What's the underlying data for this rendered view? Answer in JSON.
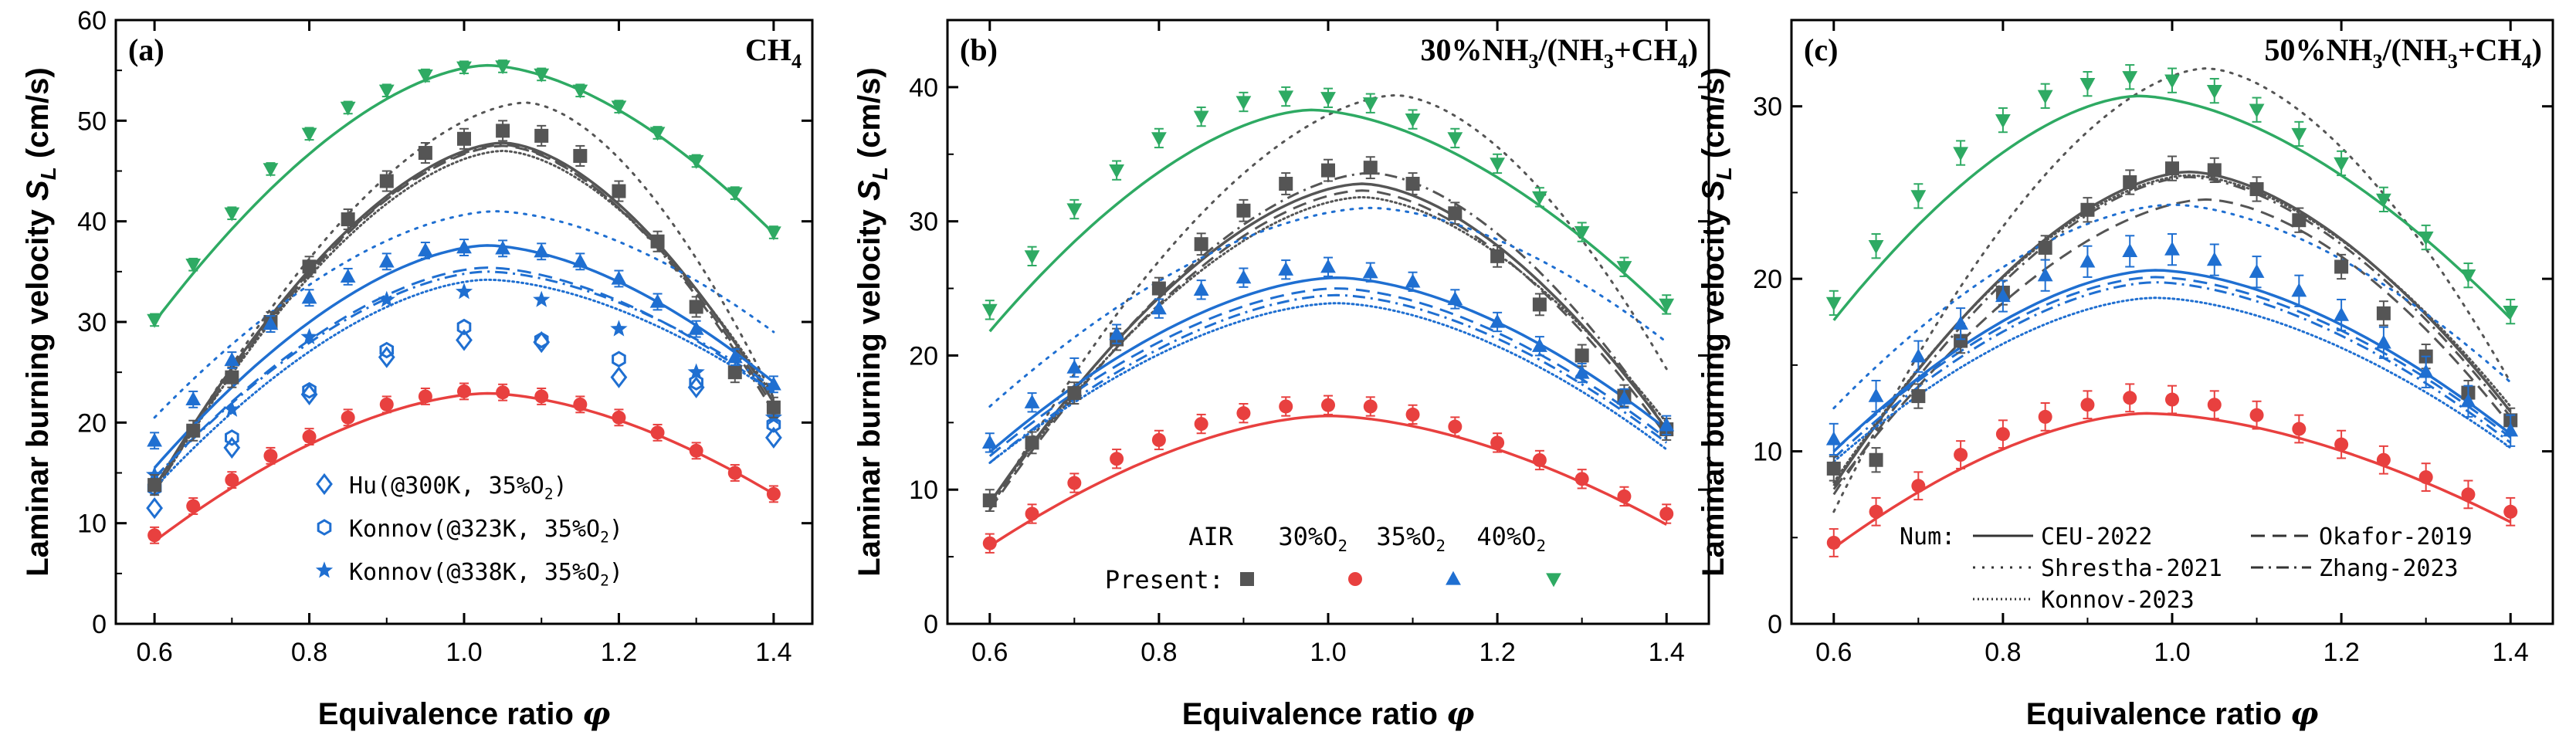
{
  "chart_data": [
    {
      "type": "line",
      "panel_label": "(a)",
      "fuel_label": "CH",
      "fuel_sub": "4",
      "fuel_rest": "",
      "xlabel": "Equivalence ratio",
      "xsym": "φ",
      "ylabel": "Laminar burning velocity",
      "ysym": "S",
      "ysub": "L",
      "yunit": "(cm/s)",
      "xlim": [
        0.55,
        1.45
      ],
      "ylim": [
        0,
        60
      ],
      "xticks": [
        0.6,
        0.8,
        1.0,
        1.2,
        1.4
      ],
      "xtick_labels": [
        "0.6",
        "0.8",
        "1.0",
        "1.2",
        "1.4"
      ],
      "yticks": [
        0,
        10,
        20,
        30,
        40,
        50,
        60
      ],
      "ytick_labels": [
        "0",
        "10",
        "20",
        "30",
        "40",
        "50",
        "60"
      ],
      "x": [
        0.6,
        0.65,
        0.7,
        0.75,
        0.8,
        0.85,
        0.9,
        0.95,
        1.0,
        1.05,
        1.1,
        1.15,
        1.2,
        1.25,
        1.3,
        1.35,
        1.4
      ],
      "series": [
        {
          "name": "AIR",
          "color": "#555555",
          "marker": "square",
          "err": 1.0,
          "values": [
            13.8,
            19.2,
            24.5,
            30.0,
            35.5,
            40.2,
            44.0,
            46.8,
            48.2,
            49.0,
            48.5,
            46.5,
            43.0,
            38.0,
            31.5,
            25.0,
            21.5
          ]
        },
        {
          "name": "30%O2",
          "color": "#e8403f",
          "marker": "circle",
          "err": 0.8,
          "values": [
            8.8,
            11.7,
            14.3,
            16.7,
            18.6,
            20.5,
            21.8,
            22.6,
            23.1,
            23.0,
            22.6,
            21.8,
            20.5,
            19.0,
            17.2,
            15.0,
            12.9
          ]
        },
        {
          "name": "35%O2",
          "color": "#1f6fd1",
          "marker": "triangle",
          "err": 0.8,
          "values": [
            18.2,
            22.3,
            26.2,
            29.8,
            32.4,
            34.5,
            36.0,
            37.1,
            37.4,
            37.3,
            37.0,
            36.0,
            34.3,
            32.0,
            29.3,
            26.5,
            23.8
          ]
        },
        {
          "name": "40%O2",
          "color": "#2eaa63",
          "marker": "triangle-down",
          "err": 0.6,
          "values": [
            30.2,
            35.7,
            40.8,
            45.2,
            48.7,
            51.3,
            53.0,
            54.5,
            55.3,
            55.4,
            54.6,
            53.0,
            51.4,
            48.8,
            46.0,
            42.8,
            38.9
          ]
        }
      ],
      "model_curves": [
        {
          "name": "CEU-2022 AIR",
          "color": "#555555",
          "style": "solid",
          "peak": 47.8,
          "phi0": 1.05,
          "end_lo": 13.5,
          "end_hi": 22.0
        },
        {
          "name": "Shrestha-2021 AIR",
          "color": "#555555",
          "style": "dot",
          "peak": 51.8,
          "phi0": 1.08,
          "end_lo": 13.0,
          "end_hi": 22.5
        },
        {
          "name": "Okafor-2019 AIR",
          "color": "#555555",
          "style": "dash",
          "peak": 47.5,
          "phi0": 1.05,
          "end_lo": 13.0,
          "end_hi": 21.5
        },
        {
          "name": "Zhang-2023 AIR",
          "color": "#555555",
          "style": "dashdot",
          "peak": 47.6,
          "phi0": 1.05,
          "end_lo": 13.2,
          "end_hi": 21.0
        },
        {
          "name": "Konnov-2023 AIR",
          "color": "#555555",
          "style": "finedot",
          "peak": 47.0,
          "phi0": 1.05,
          "end_lo": 13.0,
          "end_hi": 22.5
        },
        {
          "name": "CEU-2022 30%O2",
          "color": "#e8403f",
          "style": "solid",
          "peak": 22.9,
          "phi0": 1.03,
          "end_lo": 8.2,
          "end_hi": 12.9
        },
        {
          "name": "CEU-2022 35%O2",
          "color": "#1f6fd1",
          "style": "solid",
          "peak": 37.6,
          "phi0": 1.03,
          "end_lo": 15.5,
          "end_hi": 24.0
        },
        {
          "name": "Shrestha-2021 35%O2",
          "color": "#1f6fd1",
          "style": "dot",
          "peak": 41.0,
          "phi0": 1.04,
          "end_lo": 20.5,
          "end_hi": 29.0
        },
        {
          "name": "Okafor-2019 35%O2",
          "color": "#1f6fd1",
          "style": "dash",
          "peak": 35.4,
          "phi0": 1.03,
          "end_lo": 14.5,
          "end_hi": 23.0
        },
        {
          "name": "Zhang-2023 35%O2",
          "color": "#1f6fd1",
          "style": "dashdot",
          "peak": 35.0,
          "phi0": 1.03,
          "end_lo": 14.5,
          "end_hi": 23.5
        },
        {
          "name": "Konnov-2023 35%O2",
          "color": "#1f6fd1",
          "style": "finedot",
          "peak": 34.2,
          "phi0": 1.03,
          "end_lo": 13.5,
          "end_hi": 23.0
        },
        {
          "name": "CEU-2022 40%O2",
          "color": "#2eaa63",
          "style": "solid",
          "peak": 55.5,
          "phi0": 1.03,
          "end_lo": 30.0,
          "end_hi": 38.8
        }
      ],
      "ref_data": [
        {
          "name": "Hu (@300K, 35%O2)",
          "label_main": "Hu(@300K, 35%O",
          "label_sub": "2",
          "label_end": ")",
          "marker": "diamond-open",
          "color": "#1f6fd1",
          "x": [
            0.6,
            0.7,
            0.8,
            0.9,
            1.0,
            1.1,
            1.2,
            1.3,
            1.4
          ],
          "values": [
            11.5,
            17.5,
            22.8,
            26.5,
            28.2,
            28.0,
            24.5,
            23.5,
            18.5
          ]
        },
        {
          "name": "Konnov (@323K, 35%O2)",
          "label_main": "Konnov(@323K, 35%O",
          "label_sub": "2",
          "label_end": ")",
          "marker": "hexagon-open",
          "color": "#1f6fd1",
          "x": [
            0.6,
            0.7,
            0.8,
            0.9,
            1.0,
            1.1,
            1.2,
            1.3,
            1.4
          ],
          "values": [
            13.5,
            18.5,
            23.2,
            27.2,
            29.5,
            28.2,
            26.3,
            24.0,
            19.8
          ]
        },
        {
          "name": "Konnov (@338K, 35%O2)",
          "label_main": "Konnov(@338K, 35%O",
          "label_sub": "2",
          "label_end": ")",
          "marker": "star",
          "color": "#1f6fd1",
          "x": [
            0.6,
            0.7,
            0.8,
            0.9,
            1.0,
            1.1,
            1.2,
            1.3,
            1.4
          ],
          "values": [
            14.8,
            21.3,
            28.5,
            32.2,
            33.0,
            32.2,
            29.3,
            25.0,
            20.5
          ]
        }
      ]
    },
    {
      "type": "line",
      "panel_label": "(b)",
      "fuel_label": "30%NH",
      "fuel_sub": "3",
      "fuel_rest": "/(NH3+CH4)",
      "fuel_parts": [
        "30%NH",
        "3",
        "/(NH",
        "3",
        "+CH",
        "4",
        ")"
      ],
      "xlabel": "Equivalence ratio",
      "xsym": "φ",
      "ylabel": "Laminar burning velocity",
      "ysym": "S",
      "ysub": "L",
      "yunit": "(cm/s)",
      "xlim": [
        0.55,
        1.45
      ],
      "ylim": [
        0,
        45
      ],
      "xticks": [
        0.6,
        0.8,
        1.0,
        1.2,
        1.4
      ],
      "xtick_labels": [
        "0.6",
        "0.8",
        "1.0",
        "1.2",
        "1.4"
      ],
      "yticks": [
        0,
        10,
        20,
        30,
        40
      ],
      "ytick_labels": [
        "0",
        "10",
        "20",
        "30",
        "40"
      ],
      "x": [
        0.6,
        0.65,
        0.7,
        0.75,
        0.8,
        0.85,
        0.9,
        0.95,
        1.0,
        1.05,
        1.1,
        1.15,
        1.2,
        1.25,
        1.3,
        1.35,
        1.4
      ],
      "series": [
        {
          "name": "AIR",
          "color": "#555555",
          "marker": "square",
          "err": 0.8,
          "values": [
            9.2,
            13.5,
            17.2,
            21.2,
            25.0,
            28.3,
            30.8,
            32.8,
            33.8,
            34.0,
            32.8,
            30.6,
            27.4,
            23.8,
            20.0,
            17.0,
            14.5
          ]
        },
        {
          "name": "30%O2",
          "color": "#e8403f",
          "marker": "circle",
          "err": 0.7,
          "values": [
            6.0,
            8.2,
            10.5,
            12.3,
            13.7,
            14.9,
            15.7,
            16.2,
            16.3,
            16.2,
            15.6,
            14.7,
            13.5,
            12.2,
            10.8,
            9.5,
            8.2
          ]
        },
        {
          "name": "35%O2",
          "color": "#1f6fd1",
          "marker": "triangle",
          "err": 0.7,
          "values": [
            13.5,
            16.5,
            19.1,
            21.6,
            23.5,
            24.9,
            25.8,
            26.4,
            26.6,
            26.2,
            25.5,
            24.2,
            22.5,
            20.7,
            18.7,
            16.8,
            14.8
          ]
        },
        {
          "name": "40%O2",
          "color": "#2eaa63",
          "marker": "triangle-down",
          "err": 0.7,
          "values": [
            23.4,
            27.4,
            30.9,
            33.8,
            36.2,
            37.8,
            38.9,
            39.3,
            39.2,
            38.8,
            37.6,
            36.2,
            34.3,
            31.8,
            29.2,
            26.6,
            23.8
          ]
        }
      ],
      "model_curves": [
        {
          "name": "CEU-2022 AIR",
          "color": "#555555",
          "style": "solid",
          "peak": 32.8,
          "phi0": 1.04,
          "end_lo": 9.0,
          "end_hi": 14.5
        },
        {
          "name": "Shrestha-2021 AIR",
          "color": "#555555",
          "style": "dot",
          "peak": 39.4,
          "phi0": 1.08,
          "end_lo": 8.5,
          "end_hi": 19.0
        },
        {
          "name": "Okafor-2019 AIR",
          "color": "#555555",
          "style": "dash",
          "peak": 32.3,
          "phi0": 1.04,
          "end_lo": 8.5,
          "end_hi": 14.0
        },
        {
          "name": "Zhang-2023 AIR",
          "color": "#555555",
          "style": "dashdot",
          "peak": 33.6,
          "phi0": 1.05,
          "end_lo": 8.7,
          "end_hi": 14.5
        },
        {
          "name": "Konnov-2023 AIR",
          "color": "#555555",
          "style": "finedot",
          "peak": 31.8,
          "phi0": 1.04,
          "end_lo": 9.0,
          "end_hi": 15.0
        },
        {
          "name": "CEU-2022 30%O2",
          "color": "#e8403f",
          "style": "solid",
          "peak": 15.5,
          "phi0": 1.0,
          "end_lo": 5.8,
          "end_hi": 7.4
        },
        {
          "name": "CEU-2022 35%O2",
          "color": "#1f6fd1",
          "style": "solid",
          "peak": 25.8,
          "phi0": 1.01,
          "end_lo": 12.8,
          "end_hi": 14.5
        },
        {
          "name": "Shrestha-2021 35%O2",
          "color": "#1f6fd1",
          "style": "dot",
          "peak": 31.0,
          "phi0": 1.05,
          "end_lo": 16.2,
          "end_hi": 21.0
        },
        {
          "name": "Okafor-2019 35%O2",
          "color": "#1f6fd1",
          "style": "dash",
          "peak": 25.0,
          "phi0": 1.01,
          "end_lo": 12.5,
          "end_hi": 13.8
        },
        {
          "name": "Zhang-2023 35%O2",
          "color": "#1f6fd1",
          "style": "dashdot",
          "peak": 24.5,
          "phi0": 1.01,
          "end_lo": 12.0,
          "end_hi": 13.5
        },
        {
          "name": "Konnov-2023 35%O2",
          "color": "#1f6fd1",
          "style": "finedot",
          "peak": 23.9,
          "phi0": 1.01,
          "end_lo": 12.0,
          "end_hi": 13.0
        },
        {
          "name": "CEU-2022 40%O2",
          "color": "#2eaa63",
          "style": "solid",
          "peak": 38.3,
          "phi0": 0.98,
          "end_lo": 21.8,
          "end_hi": 23.2
        }
      ],
      "legend": {
        "title_row": [
          "AIR",
          "30%O",
          "35%O",
          "40%O"
        ],
        "present_label": "Present:"
      }
    },
    {
      "type": "line",
      "panel_label": "(c)",
      "fuel_parts": [
        "50%NH",
        "3",
        "/(NH",
        "3",
        "+CH",
        "4",
        ")"
      ],
      "xlabel": "Equivalence ratio",
      "xsym": "φ",
      "ylabel": "Laminar burning velocity",
      "ysym": "S",
      "ysub": "L",
      "yunit": "(cm/s)",
      "xlim": [
        0.55,
        1.45
      ],
      "ylim": [
        0,
        35
      ],
      "xticks": [
        0.6,
        0.8,
        1.0,
        1.2,
        1.4
      ],
      "xtick_labels": [
        "0.6",
        "0.8",
        "1.0",
        "1.2",
        "1.4"
      ],
      "yticks": [
        0,
        10,
        20,
        30
      ],
      "ytick_labels": [
        "0",
        "10",
        "20",
        "30"
      ],
      "x": [
        0.6,
        0.65,
        0.7,
        0.75,
        0.8,
        0.85,
        0.9,
        0.95,
        1.0,
        1.05,
        1.1,
        1.15,
        1.2,
        1.25,
        1.3,
        1.35,
        1.4
      ],
      "series": [
        {
          "name": "AIR",
          "color": "#555555",
          "marker": "square",
          "err": 0.7,
          "values": [
            9.0,
            9.5,
            13.2,
            16.4,
            19.2,
            21.8,
            24.0,
            25.6,
            26.4,
            26.3,
            25.2,
            23.4,
            20.7,
            18.0,
            15.5,
            13.4,
            11.8
          ]
        },
        {
          "name": "30%O2",
          "color": "#e8403f",
          "marker": "circle",
          "err": 0.8,
          "values": [
            4.7,
            6.5,
            8.0,
            9.8,
            11.0,
            12.0,
            12.7,
            13.1,
            13.0,
            12.7,
            12.1,
            11.3,
            10.4,
            9.5,
            8.5,
            7.5,
            6.5
          ]
        },
        {
          "name": "35%O2",
          "color": "#1f6fd1",
          "marker": "triangle",
          "err": 0.9,
          "values": [
            10.7,
            13.2,
            15.5,
            17.4,
            19.0,
            20.2,
            21.0,
            21.6,
            21.7,
            21.1,
            20.4,
            19.3,
            17.9,
            16.3,
            14.6,
            12.9,
            11.2
          ]
        },
        {
          "name": "40%O2",
          "color": "#2eaa63",
          "marker": "triangle-down",
          "err": 0.7,
          "values": [
            18.6,
            21.9,
            24.8,
            27.3,
            29.2,
            30.6,
            31.3,
            31.7,
            31.5,
            30.9,
            29.8,
            28.4,
            26.7,
            24.6,
            22.4,
            20.2,
            18.1
          ]
        }
      ],
      "model_curves": [
        {
          "name": "CEU-2022 AIR",
          "color": "#555555",
          "style": "solid",
          "peak": 26.2,
          "phi0": 1.02,
          "end_lo": 8.0,
          "end_hi": 12.3
        },
        {
          "name": "Shrestha-2021 AIR",
          "color": "#555555",
          "style": "dot",
          "peak": 32.2,
          "phi0": 1.04,
          "end_lo": 6.5,
          "end_hi": 14.0
        },
        {
          "name": "Okafor-2019 AIR",
          "color": "#555555",
          "style": "dash",
          "peak": 24.6,
          "phi0": 1.04,
          "end_lo": 7.8,
          "end_hi": 11.5
        },
        {
          "name": "Zhang-2023 AIR",
          "color": "#555555",
          "style": "dashdot",
          "peak": 25.9,
          "phi0": 1.02,
          "end_lo": 7.5,
          "end_hi": 12.0
        },
        {
          "name": "Konnov-2023 AIR",
          "color": "#555555",
          "style": "finedot",
          "peak": 26.0,
          "phi0": 1.02,
          "end_lo": 8.2,
          "end_hi": 12.6
        },
        {
          "name": "CEU-2022 30%O2",
          "color": "#e8403f",
          "style": "solid",
          "peak": 12.2,
          "phi0": 0.97,
          "end_lo": 4.4,
          "end_hi": 5.9
        },
        {
          "name": "CEU-2022 35%O2",
          "color": "#1f6fd1",
          "style": "solid",
          "peak": 20.5,
          "phi0": 0.98,
          "end_lo": 10.0,
          "end_hi": 11.0
        },
        {
          "name": "Shrestha-2021 35%O2",
          "color": "#1f6fd1",
          "style": "dot",
          "peak": 24.3,
          "phi0": 1.0,
          "end_lo": 12.5,
          "end_hi": 14.0
        },
        {
          "name": "Okafor-2019 35%O2",
          "color": "#1f6fd1",
          "style": "dash",
          "peak": 20.1,
          "phi0": 0.98,
          "end_lo": 10.0,
          "end_hi": 10.8
        },
        {
          "name": "Zhang-2023 35%O2",
          "color": "#1f6fd1",
          "style": "dashdot",
          "peak": 19.8,
          "phi0": 0.98,
          "end_lo": 9.6,
          "end_hi": 10.5
        },
        {
          "name": "Konnov-2023 35%O2",
          "color": "#1f6fd1",
          "style": "finedot",
          "peak": 18.9,
          "phi0": 0.98,
          "end_lo": 9.4,
          "end_hi": 10.2
        },
        {
          "name": "CEU-2022 40%O2",
          "color": "#2eaa63",
          "style": "solid",
          "peak": 30.6,
          "phi0": 0.96,
          "end_lo": 17.6,
          "end_hi": 17.7
        }
      ],
      "legend": {
        "num_label": "Num:",
        "entries": [
          {
            "name": "CEU-2022",
            "style": "solid"
          },
          {
            "name": "Okafor-2019",
            "style": "dash"
          },
          {
            "name": "Shrestha-2021",
            "style": "dot"
          },
          {
            "name": "Zhang-2023",
            "style": "dashdot"
          },
          {
            "name": "Konnov-2023",
            "style": "finedot"
          }
        ]
      }
    }
  ]
}
